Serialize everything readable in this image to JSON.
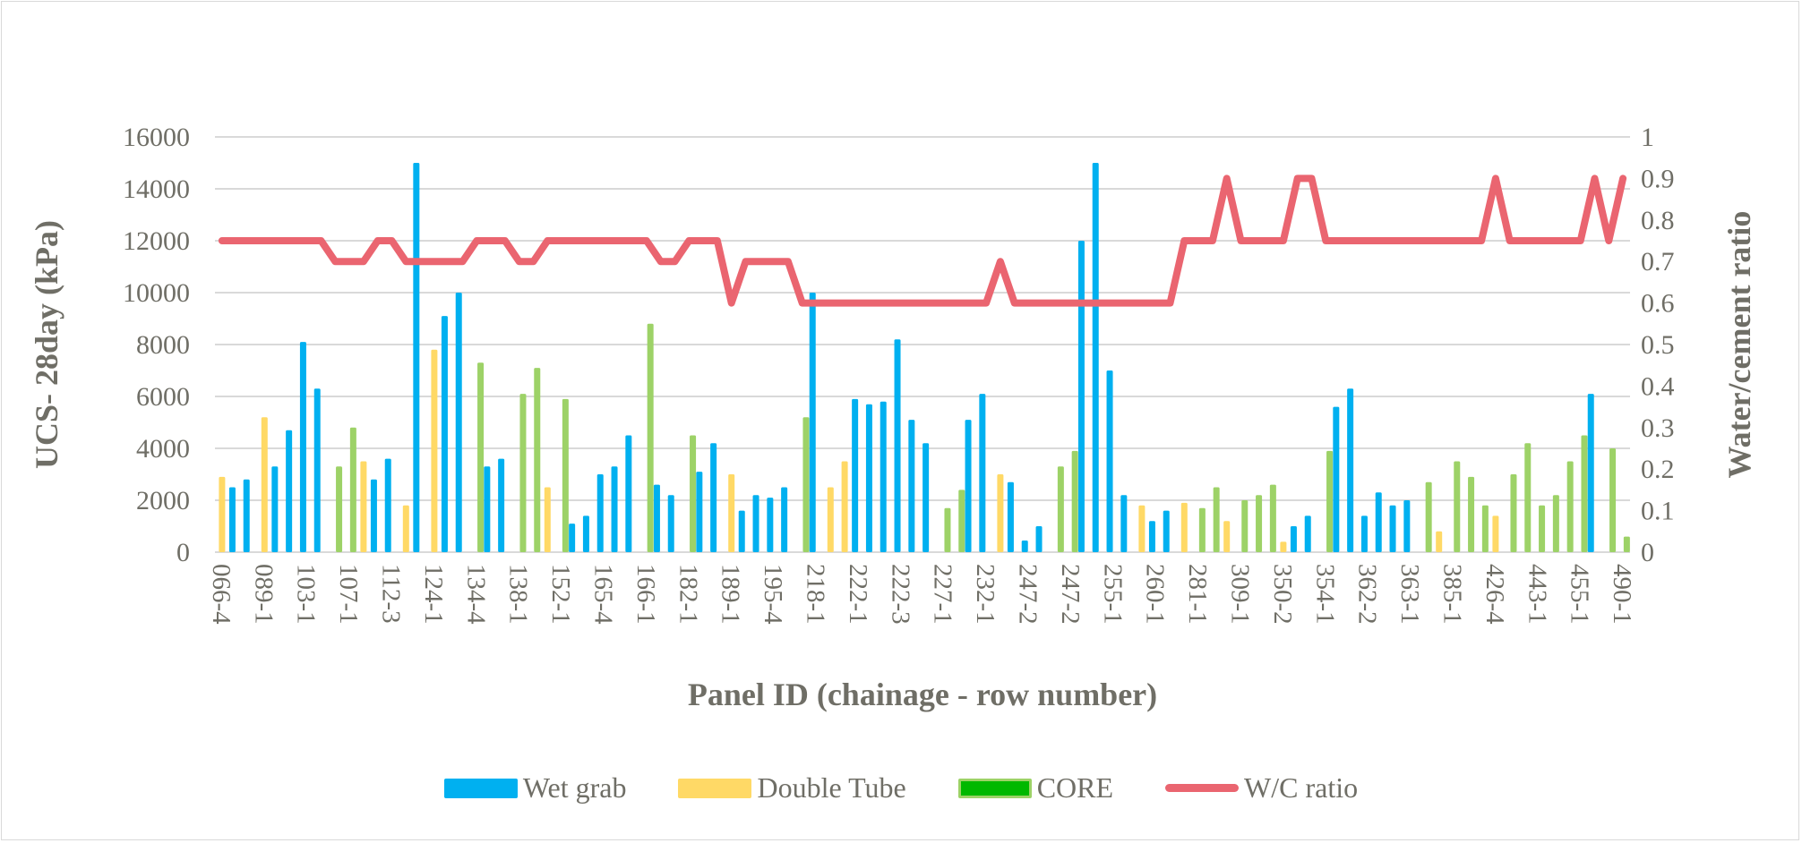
{
  "chart_data": {
    "type": "bar+line",
    "xlabel": "Panel ID (chainage - row number)",
    "ylabel": "UCS- 28day (kPa)",
    "y2label": "Water/cement ratio",
    "ylim": [
      0,
      16000
    ],
    "y_ticks": [
      "0",
      "2000",
      "4000",
      "6000",
      "8000",
      "10000",
      "12000",
      "14000",
      "16000"
    ],
    "y2lim": [
      0,
      1
    ],
    "y2_ticks": [
      "0",
      "0.1",
      "0.2",
      "0.3",
      "0.4",
      "0.5",
      "0.6",
      "0.7",
      "0.8",
      "0.9",
      "1"
    ],
    "grid": true,
    "legend_position": "bottom",
    "category_count": 100,
    "x_tick_every": 3,
    "x_tick_labels": [
      "066-4",
      "089-1",
      "103-1",
      "107-1",
      "112-3",
      "124-1",
      "134-4",
      "138-1",
      "152-1",
      "165-4",
      "166-1",
      "182-1",
      "189-1",
      "195-4",
      "218-1",
      "222-1",
      "222-3",
      "227-1",
      "232-1",
      "247-2",
      "247-2",
      "255-1",
      "260-1",
      "281-1",
      "309-1",
      "350-2",
      "354-1",
      "362-2",
      "363-1",
      "385-1",
      "426-4",
      "443-1",
      "455-1",
      "490-1"
    ],
    "series": [
      {
        "name": "Wet grab",
        "kind": "bar",
        "color": "#00B0F0",
        "slot": -1,
        "points": [
          [
            1,
            2500
          ],
          [
            2,
            2800
          ],
          [
            4,
            3300
          ],
          [
            5,
            4700
          ],
          [
            6,
            8100
          ],
          [
            7,
            6300
          ],
          [
            11,
            2800
          ],
          [
            12,
            3600
          ],
          [
            14,
            15000
          ],
          [
            16,
            9100
          ],
          [
            17,
            10000
          ],
          [
            19,
            3300
          ],
          [
            20,
            3600
          ],
          [
            25,
            1100
          ],
          [
            26,
            1400
          ],
          [
            27,
            3000
          ],
          [
            28,
            3300
          ],
          [
            29,
            4500
          ],
          [
            31,
            2600
          ],
          [
            32,
            2200
          ],
          [
            34,
            3100
          ],
          [
            35,
            4200
          ],
          [
            37,
            1600
          ],
          [
            38,
            2200
          ],
          [
            39,
            2100
          ],
          [
            40,
            2500
          ],
          [
            42,
            10000
          ],
          [
            45,
            5900
          ],
          [
            46,
            5700
          ],
          [
            47,
            5800
          ],
          [
            48,
            8200
          ],
          [
            49,
            5100
          ],
          [
            50,
            4200
          ],
          [
            53,
            5100
          ],
          [
            54,
            6100
          ],
          [
            56,
            2700
          ],
          [
            57,
            450
          ],
          [
            58,
            1000
          ],
          [
            61,
            12000
          ],
          [
            62,
            15000
          ],
          [
            63,
            7000
          ],
          [
            64,
            2200
          ],
          [
            66,
            1200
          ],
          [
            67,
            1600
          ],
          [
            76,
            1000
          ],
          [
            77,
            1400
          ],
          [
            79,
            5600
          ],
          [
            80,
            6300
          ],
          [
            81,
            1400
          ],
          [
            82,
            2300
          ],
          [
            83,
            1800
          ],
          [
            84,
            2000
          ],
          [
            97,
            6100
          ]
        ]
      },
      {
        "name": "Double Tube",
        "kind": "bar",
        "color": "#FFD966",
        "slot": 0,
        "points": [
          [
            0,
            2900
          ],
          [
            3,
            5200
          ],
          [
            10,
            3500
          ],
          [
            13,
            1800
          ],
          [
            15,
            7800
          ],
          [
            23,
            2500
          ],
          [
            36,
            3000
          ],
          [
            43,
            2500
          ],
          [
            44,
            3500
          ],
          [
            55,
            3000
          ],
          [
            65,
            1800
          ],
          [
            68,
            1900
          ],
          [
            71,
            1200
          ],
          [
            75,
            400
          ],
          [
            86,
            800
          ],
          [
            90,
            1400
          ]
        ]
      },
      {
        "name": "CORE",
        "kind": "bar",
        "color": "#9DD267",
        "legend_color": "#00B800",
        "slot": 1,
        "points": [
          [
            8,
            3300
          ],
          [
            9,
            4800
          ],
          [
            18,
            7300
          ],
          [
            21,
            6100
          ],
          [
            22,
            7100
          ],
          [
            24,
            5900
          ],
          [
            30,
            8800
          ],
          [
            33,
            4500
          ],
          [
            41,
            5200
          ],
          [
            51,
            1700
          ],
          [
            52,
            2400
          ],
          [
            59,
            3300
          ],
          [
            60,
            3900
          ],
          [
            69,
            1700
          ],
          [
            70,
            2500
          ],
          [
            72,
            2000
          ],
          [
            73,
            2200
          ],
          [
            74,
            2600
          ],
          [
            78,
            3900
          ],
          [
            85,
            2700
          ],
          [
            87,
            3500
          ],
          [
            88,
            2900
          ],
          [
            89,
            1800
          ],
          [
            91,
            3000
          ],
          [
            92,
            4200
          ],
          [
            93,
            1800
          ],
          [
            94,
            2200
          ],
          [
            95,
            3500
          ],
          [
            96,
            4500
          ],
          [
            98,
            4000
          ],
          [
            99,
            600
          ]
        ]
      },
      {
        "name": "W/C ratio",
        "kind": "line",
        "axis": "right",
        "color": "#EA6570",
        "values": [
          0.75,
          0.75,
          0.75,
          0.75,
          0.75,
          0.75,
          0.75,
          0.75,
          0.7,
          0.7,
          0.7,
          0.75,
          0.75,
          0.7,
          0.7,
          0.7,
          0.7,
          0.7,
          0.75,
          0.75,
          0.75,
          0.7,
          0.7,
          0.75,
          0.75,
          0.75,
          0.75,
          0.75,
          0.75,
          0.75,
          0.75,
          0.7,
          0.7,
          0.75,
          0.75,
          0.75,
          0.6,
          0.7,
          0.7,
          0.7,
          0.7,
          0.6,
          0.6,
          0.6,
          0.6,
          0.6,
          0.6,
          0.6,
          0.6,
          0.6,
          0.6,
          0.6,
          0.6,
          0.6,
          0.6,
          0.7,
          0.6,
          0.6,
          0.6,
          0.6,
          0.6,
          0.6,
          0.6,
          0.6,
          0.6,
          0.6,
          0.6,
          0.6,
          0.75,
          0.75,
          0.75,
          0.9,
          0.75,
          0.75,
          0.75,
          0.75,
          0.9,
          0.9,
          0.75,
          0.75,
          0.75,
          0.75,
          0.75,
          0.75,
          0.75,
          0.75,
          0.75,
          0.75,
          0.75,
          0.75,
          0.9,
          0.75,
          0.75,
          0.75,
          0.75,
          0.75,
          0.75,
          0.9,
          0.75,
          0.9
        ]
      }
    ]
  }
}
